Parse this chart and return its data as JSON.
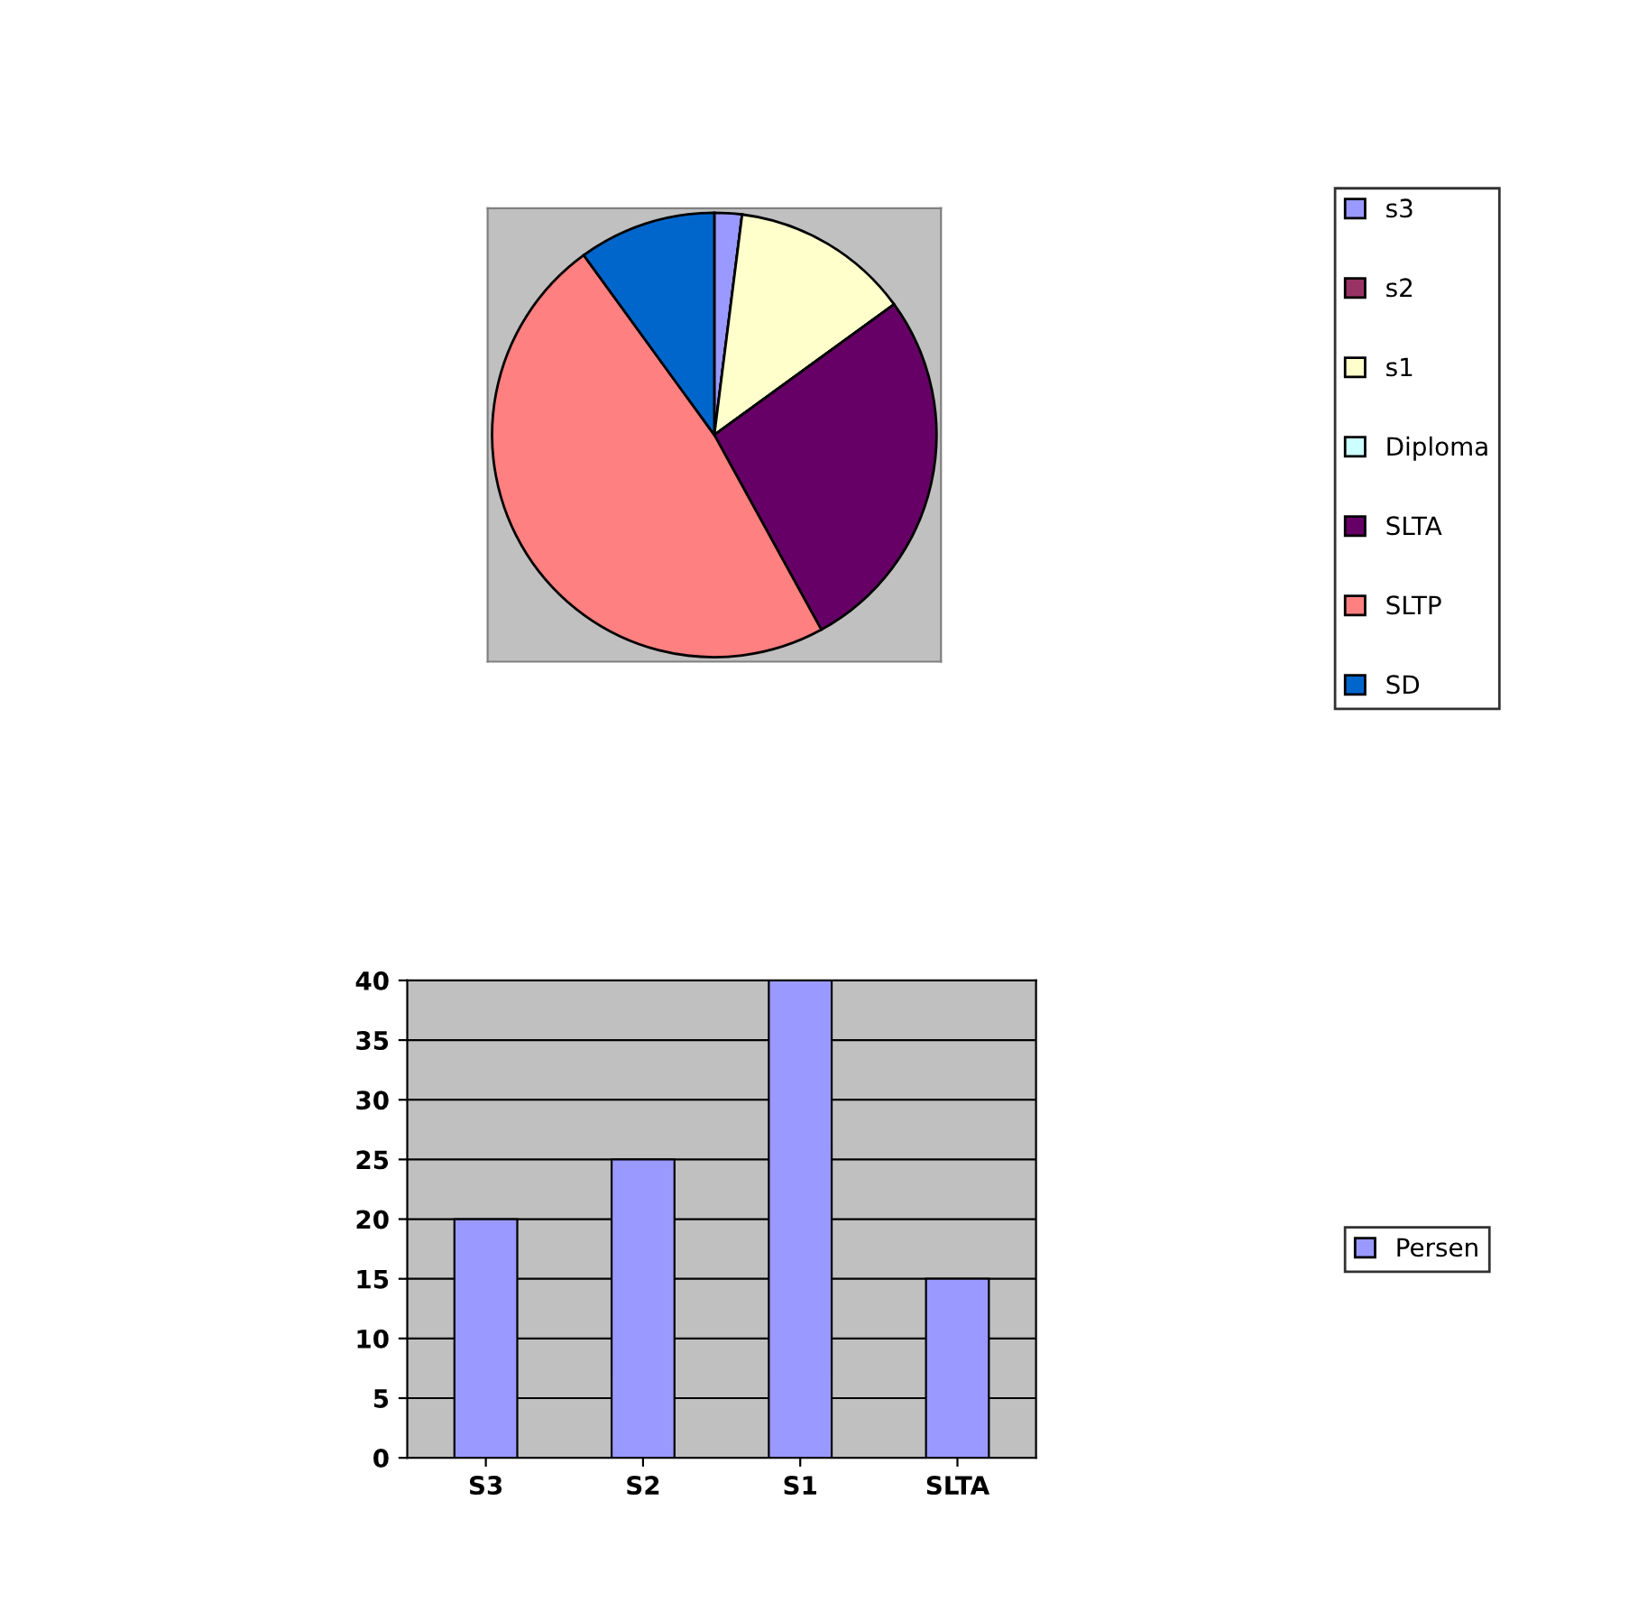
{
  "chart_data": [
    {
      "type": "pie",
      "categories": [
        "s3",
        "s2",
        "s1",
        "Diploma",
        "SLTA",
        "SLTP",
        "SD"
      ],
      "values": [
        2,
        0,
        13,
        0,
        27,
        48,
        10
      ],
      "colors": [
        "#9999ff",
        "#993366",
        "#ffffcc",
        "#ccffff",
        "#660066",
        "#ff8080",
        "#0066cc"
      ],
      "legend": "right"
    },
    {
      "type": "bar",
      "categories": [
        "S3",
        "S2",
        "S1",
        "SLTA"
      ],
      "series": [
        {
          "name": "Persen",
          "color": "#9999ff",
          "values": [
            20,
            25,
            40,
            15
          ]
        }
      ],
      "ylim": [
        0,
        40
      ],
      "yticks": [
        0,
        5,
        10,
        15,
        20,
        25,
        30,
        35,
        40
      ],
      "grid": "y",
      "legend": "right"
    }
  ]
}
